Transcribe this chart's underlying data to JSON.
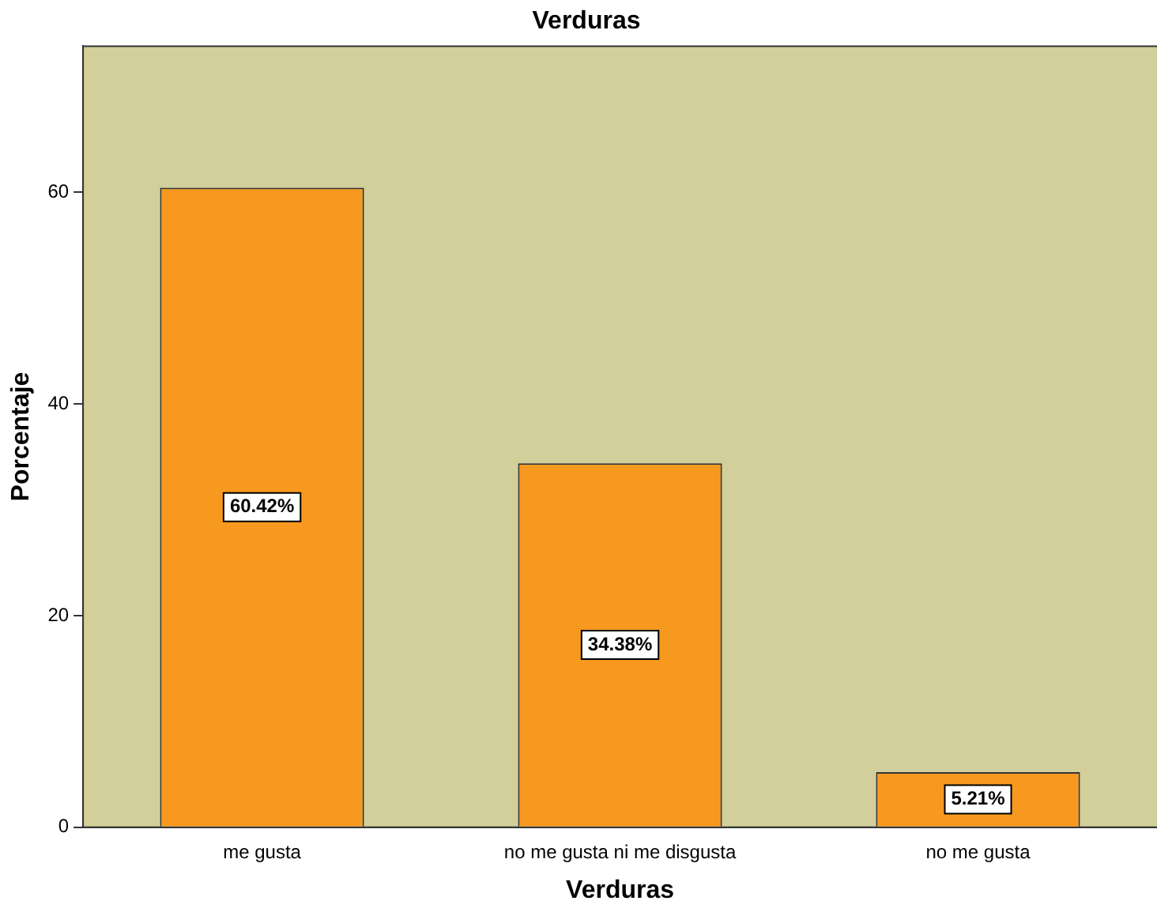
{
  "chart_data": {
    "type": "bar",
    "title": "Verduras",
    "xlabel": "Verduras",
    "ylabel": "Porcentaje",
    "categories": [
      "me gusta",
      "no me gusta ni me disgusta",
      "no me gusta"
    ],
    "values": [
      60.42,
      34.38,
      5.21
    ],
    "color": "#f7991f",
    "value_labels": [
      "60.42%",
      "34.38%",
      "5.21%"
    ],
    "ylim": [
      0,
      73.8
    ],
    "yticks": [
      0,
      20,
      40,
      60
    ],
    "grid": false,
    "legend": false
  }
}
